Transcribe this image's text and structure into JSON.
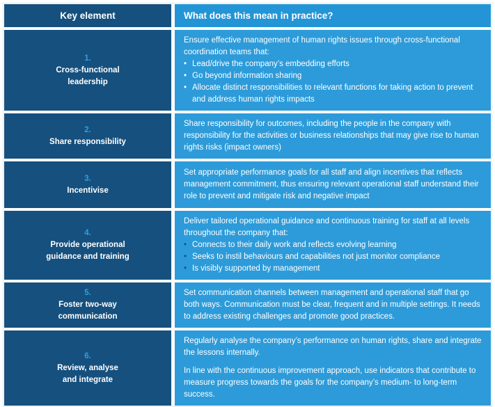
{
  "colors": {
    "left_column_bg": "#15507E",
    "header_right_bg": "#2395D6",
    "body_right_bg": "#2D9BD9",
    "row_number_text": "#2F9FDF",
    "body_text": "#FFFFFF",
    "dark_bullet": "#15507E",
    "page_bg": "#FFFFFF"
  },
  "icons": {
    "bullet_glyph": "•"
  },
  "table": {
    "header": {
      "key_element": "Key element",
      "practice": "What does this mean in practice?"
    },
    "rows": [
      {
        "number": "1.",
        "label": "Cross-functional\nleadership",
        "intro": "Ensure effective management of human rights issues through cross-functional coordination teams that:",
        "bullets": [
          "Lead/drive the company’s embedding efforts",
          "Go beyond information sharing",
          "Allocate distinct responsibilities to relevant functions for taking action to prevent and address human rights impacts"
        ]
      },
      {
        "number": "2.",
        "label": "Share responsibility",
        "paragraphs": [
          "Share responsibility for outcomes, including the people in the company with responsibility for the activities or business relationships that may give rise to human rights risks (impact owners)"
        ]
      },
      {
        "number": "3.",
        "label": "Incentivise",
        "paragraphs": [
          "Set appropriate performance goals for all staff and align incentives that reflects management commitment, thus ensuring relevant operational staff understand their role to prevent and mitigate risk and negative impact"
        ]
      },
      {
        "number": "4.",
        "label": "Provide operational\nguidance and training",
        "intro": "Deliver tailored operational guidance and continuous training for staff at all levels throughout the company that:",
        "bullets": [
          "Connects to their daily work and reflects evolving learning",
          "Seeks to instil behaviours and capabilities not just monitor compliance",
          "Is visibly supported by management"
        ]
      },
      {
        "number": "5.",
        "label": "Foster two-way\ncommunication",
        "paragraphs": [
          "Set communication channels between management and operational staff that go both ways. Communication must be clear, frequent and in multiple settings. It needs to address existing challenges and promote good practices."
        ]
      },
      {
        "number": "6.",
        "label": "Review, analyse\nand integrate",
        "paragraphs": [
          "Regularly analyse the company’s performance on human rights, share and integrate the lessons internally.",
          "In line with the continuous improvement approach, use indicators that contribute to measure progress towards the goals for the company’s medium- to long-term success."
        ]
      }
    ]
  }
}
